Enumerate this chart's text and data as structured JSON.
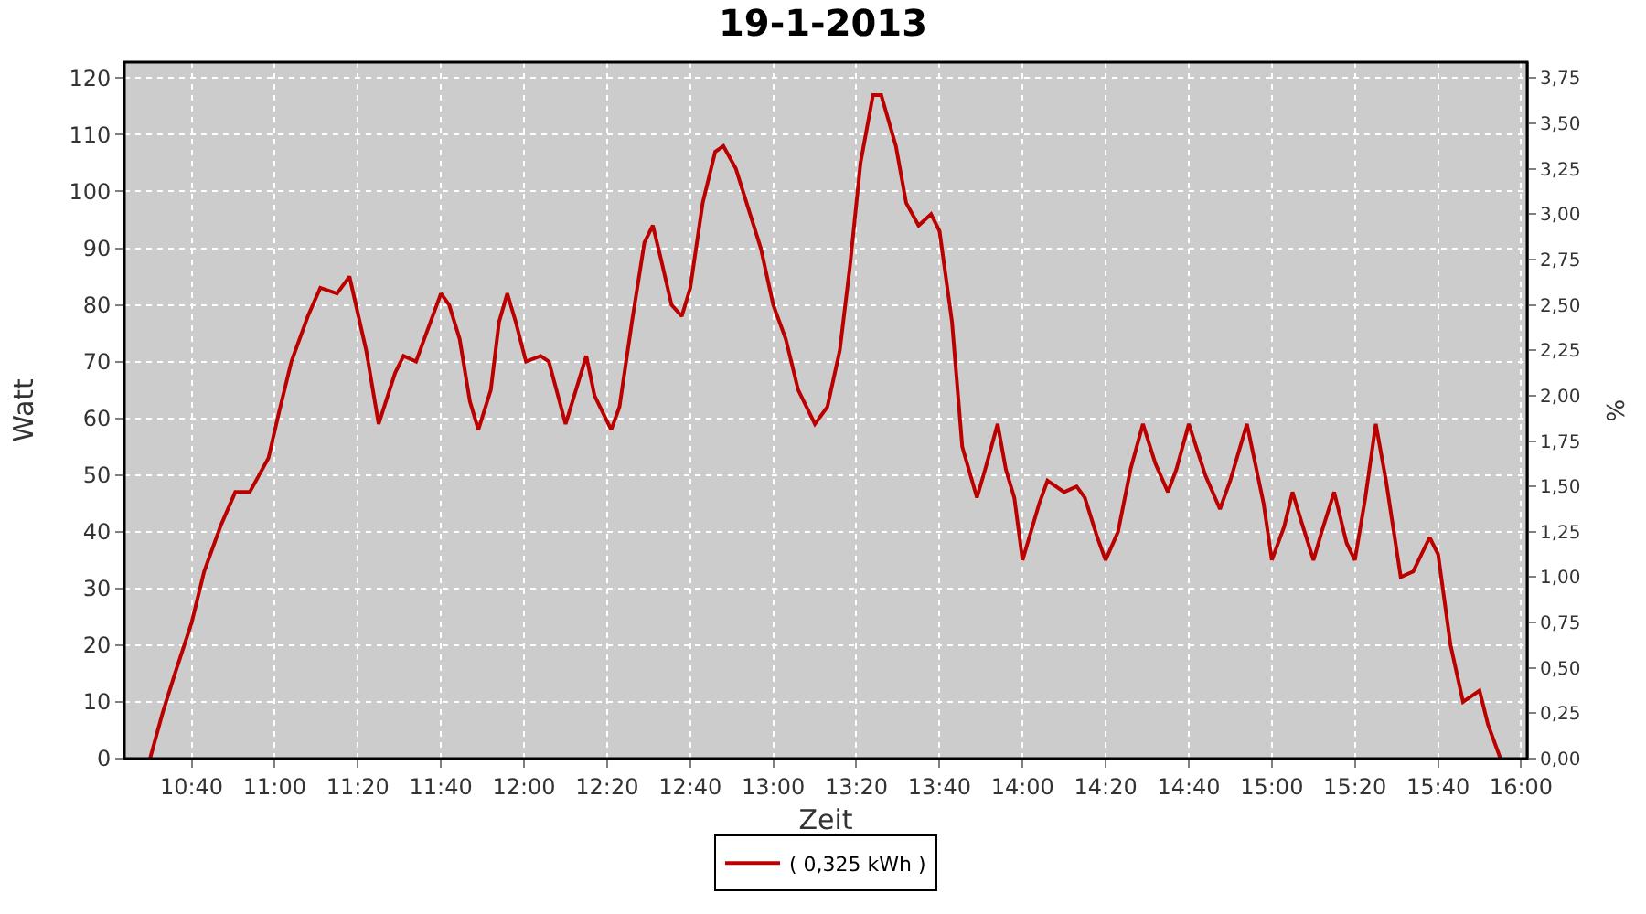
{
  "chart_data": {
    "type": "line",
    "title": "19-1-2013",
    "xlabel": "Zeit",
    "ylabel": "Watt",
    "y2label": "%",
    "x": [
      10.5,
      10.55,
      10.6,
      10.667,
      10.717,
      10.783,
      10.842,
      10.9,
      10.975,
      11.017,
      11.067,
      11.133,
      11.183,
      11.25,
      11.3,
      11.367,
      11.417,
      11.483,
      11.517,
      11.567,
      11.6,
      11.667,
      11.7,
      11.742,
      11.783,
      11.817,
      11.867,
      11.9,
      11.933,
      11.967,
      12.008,
      12.067,
      12.1,
      12.167,
      12.25,
      12.283,
      12.35,
      12.383,
      12.433,
      12.483,
      12.517,
      12.55,
      12.592,
      12.633,
      12.667,
      12.717,
      12.767,
      12.8,
      12.85,
      12.9,
      12.95,
      13.0,
      13.05,
      13.1,
      13.167,
      13.217,
      13.267,
      13.308,
      13.35,
      13.4,
      13.433,
      13.492,
      13.533,
      13.583,
      13.633,
      13.667,
      13.717,
      13.758,
      13.817,
      13.85,
      13.9,
      13.933,
      13.967,
      14.0,
      14.067,
      14.1,
      14.167,
      14.217,
      14.25,
      14.3,
      14.333,
      14.383,
      14.433,
      14.483,
      14.533,
      14.583,
      14.617,
      14.667,
      14.733,
      14.792,
      14.833,
      14.9,
      14.967,
      15.0,
      15.05,
      15.083,
      15.117,
      15.167,
      15.2,
      15.25,
      15.3,
      15.333,
      15.375,
      15.417,
      15.458,
      15.517,
      15.567,
      15.633,
      15.667,
      15.717,
      15.767,
      15.833,
      15.867,
      15.917
    ],
    "series": [
      {
        "name": "( 0,325 kWh )",
        "color": "#bb0000",
        "values": [
          0,
          8,
          15,
          24,
          33,
          41,
          47,
          47,
          53,
          61,
          70,
          78,
          83,
          82,
          85,
          72,
          59,
          68,
          71,
          70,
          74,
          82,
          80,
          74,
          63,
          58,
          65,
          77,
          82,
          77,
          70,
          71,
          70,
          59,
          71,
          64,
          58,
          62,
          77,
          91,
          94,
          88,
          80,
          78,
          83,
          98,
          107,
          108,
          104,
          97,
          90,
          80,
          74,
          65,
          59,
          62,
          72,
          87,
          105,
          117,
          117,
          108,
          98,
          94,
          96,
          93,
          77,
          55,
          46,
          51,
          59,
          51,
          46,
          35,
          45,
          49,
          47,
          48,
          46,
          39,
          35,
          40,
          51,
          59,
          52,
          47,
          51,
          59,
          50,
          44,
          49,
          59,
          45,
          35,
          41,
          47,
          42,
          35,
          40,
          47,
          38,
          35,
          46,
          59,
          49,
          32,
          33,
          39,
          36,
          20,
          10,
          12,
          6,
          0
        ]
      }
    ],
    "xlim": [
      10.397,
      16.024
    ],
    "xticks": [
      {
        "value": 10.6667,
        "label": "10:40"
      },
      {
        "value": 11.0,
        "label": "11:00"
      },
      {
        "value": 11.3333,
        "label": "11:20"
      },
      {
        "value": 11.6667,
        "label": "11:40"
      },
      {
        "value": 12.0,
        "label": "12:00"
      },
      {
        "value": 12.3333,
        "label": "12:20"
      },
      {
        "value": 12.6667,
        "label": "12:40"
      },
      {
        "value": 13.0,
        "label": "13:00"
      },
      {
        "value": 13.3333,
        "label": "13:20"
      },
      {
        "value": 13.6667,
        "label": "13:40"
      },
      {
        "value": 14.0,
        "label": "14:00"
      },
      {
        "value": 14.3333,
        "label": "14:20"
      },
      {
        "value": 14.6667,
        "label": "14:40"
      },
      {
        "value": 15.0,
        "label": "15:00"
      },
      {
        "value": 15.3333,
        "label": "15:20"
      },
      {
        "value": 15.6667,
        "label": "15:40"
      },
      {
        "value": 16.0,
        "label": "16:00"
      }
    ],
    "ylim": [
      0,
      122.8
    ],
    "yticks": [
      0,
      10,
      20,
      30,
      40,
      50,
      60,
      70,
      80,
      90,
      100,
      110,
      120
    ],
    "y2lim": [
      0,
      3.8375
    ],
    "y2ticks": [
      {
        "value": 0,
        "label": "0,00"
      },
      {
        "value": 0.25,
        "label": "0,25"
      },
      {
        "value": 0.5,
        "label": "0,50"
      },
      {
        "value": 0.75,
        "label": "0,75"
      },
      {
        "value": 1.0,
        "label": "1,00"
      },
      {
        "value": 1.25,
        "label": "1,25"
      },
      {
        "value": 1.5,
        "label": "1,50"
      },
      {
        "value": 1.75,
        "label": "1,75"
      },
      {
        "value": 2.0,
        "label": "2,00"
      },
      {
        "value": 2.25,
        "label": "2,25"
      },
      {
        "value": 2.5,
        "label": "2,50"
      },
      {
        "value": 2.75,
        "label": "2,75"
      },
      {
        "value": 3.0,
        "label": "3,00"
      },
      {
        "value": 3.25,
        "label": "3,25"
      },
      {
        "value": 3.5,
        "label": "3,50"
      },
      {
        "value": 3.75,
        "label": "3,75"
      }
    ],
    "grid": true,
    "legend": "bottom",
    "marker": "none",
    "line_style": "solid"
  }
}
